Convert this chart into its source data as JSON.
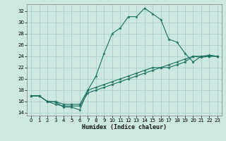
{
  "title": "",
  "xlabel": "Humidex (Indice chaleur)",
  "bg_color": "#cce8e0",
  "grid_color": "#a8ccc8",
  "line_color": "#1a7060",
  "xlim": [
    -0.5,
    23.5
  ],
  "ylim": [
    13.5,
    33.2
  ],
  "xticks": [
    0,
    1,
    2,
    3,
    4,
    5,
    6,
    7,
    8,
    9,
    10,
    11,
    12,
    13,
    14,
    15,
    16,
    17,
    18,
    19,
    20,
    21,
    22,
    23
  ],
  "yticks": [
    14,
    16,
    18,
    20,
    22,
    24,
    26,
    28,
    30,
    32
  ],
  "line1_x": [
    0,
    1,
    2,
    3,
    4,
    5,
    6,
    7,
    8,
    9,
    10,
    11,
    12,
    13,
    14,
    15,
    16,
    17,
    18,
    19,
    20,
    21,
    22,
    23
  ],
  "line1_y": [
    17,
    17,
    16,
    15.9,
    15,
    15,
    14.5,
    18,
    20.5,
    24.5,
    28,
    29,
    31,
    31,
    32.5,
    31.5,
    30.5,
    27,
    26.5,
    24.5,
    23,
    24,
    24.2,
    24
  ],
  "line2_x": [
    0,
    1,
    2,
    3,
    4,
    5,
    6,
    7,
    8,
    9,
    10,
    11,
    12,
    13,
    14,
    15,
    16,
    17,
    18,
    19,
    20,
    21,
    22,
    23
  ],
  "line2_y": [
    17,
    17,
    16,
    16,
    15.5,
    15.5,
    15.5,
    18,
    18.5,
    19,
    19.5,
    20,
    20.5,
    21,
    21.5,
    22,
    22,
    22.5,
    23,
    23.5,
    24,
    24,
    24,
    24
  ],
  "line3_x": [
    0,
    1,
    2,
    3,
    4,
    5,
    6,
    7,
    8,
    9,
    10,
    11,
    12,
    13,
    14,
    15,
    16,
    17,
    18,
    19,
    20,
    21,
    22,
    23
  ],
  "line3_y": [
    17,
    17,
    16,
    15.5,
    15.2,
    15.2,
    15.2,
    17.5,
    18,
    18.5,
    19,
    19.5,
    20,
    20.5,
    21,
    21.5,
    22,
    22,
    22.5,
    23,
    24,
    23.8,
    24,
    24
  ]
}
